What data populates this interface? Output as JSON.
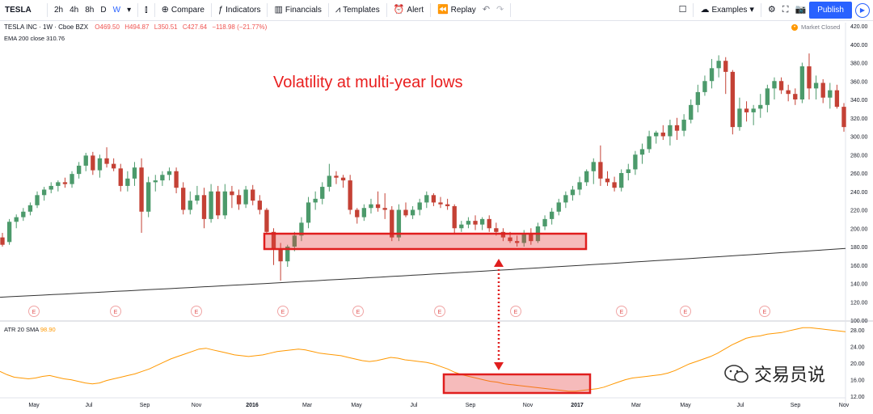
{
  "toolbar": {
    "symbol": "TESLA",
    "timeframes": [
      "2h",
      "4h",
      "8h",
      "D",
      "W"
    ],
    "active_timeframe": "W",
    "compare": "Compare",
    "indicators": "Indicators",
    "financials": "Financials",
    "templates": "Templates",
    "alert": "Alert",
    "replay": "Replay",
    "examples": "Examples",
    "publish": "Publish"
  },
  "legend": {
    "title": "TESLA INC · 1W · Cboe BZX",
    "open": "O469.50",
    "high": "H494.87",
    "low": "L350.51",
    "close": "C427.64",
    "change": "−118.98 (−21.77%)",
    "ema": "EMA 200 close",
    "ema_value": "310.76"
  },
  "market_status": "Market Closed",
  "atr": {
    "label": "ATR 20 SMA",
    "value": "98.90"
  },
  "annotation": "Volatility at multi-year lows",
  "watermark": "交易员说",
  "y_axis_price": [
    "420.00",
    "400.00",
    "380.00",
    "360.00",
    "340.00",
    "320.00",
    "300.00",
    "280.00",
    "260.00",
    "240.00",
    "220.00",
    "200.00",
    "180.00",
    "160.00",
    "140.00",
    "120.00",
    "100.00"
  ],
  "y_axis_atr": [
    "28.00",
    "24.00",
    "20.00",
    "16.00",
    "12.00"
  ],
  "x_axis": [
    "May",
    "Jul",
    "Sep",
    "Nov",
    "2016",
    "Mar",
    "May",
    "Jul",
    "Sep",
    "Nov",
    "2017",
    "Mar",
    "May",
    "Jul",
    "Sep",
    "Nov"
  ],
  "earnings_marker": "E",
  "colors": {
    "up": "#4c9a6b",
    "down": "#c44135",
    "ema": "#333333",
    "atr": "#ff9800",
    "highlight": "#e01e1e",
    "accent": "#2962ff"
  },
  "chart_data": [
    {
      "type": "candlestick",
      "ylim": [
        100,
        420
      ],
      "candles": [
        [
          190,
          195,
          180,
          182
        ],
        [
          185,
          210,
          182,
          207
        ],
        [
          207,
          215,
          200,
          212
        ],
        [
          212,
          222,
          208,
          218
        ],
        [
          218,
          228,
          214,
          225
        ],
        [
          225,
          240,
          222,
          236
        ],
        [
          236,
          245,
          230,
          242
        ],
        [
          242,
          250,
          238,
          246
        ],
        [
          246,
          252,
          240,
          250
        ],
        [
          250,
          255,
          244,
          248
        ],
        [
          248,
          262,
          244,
          259
        ],
        [
          259,
          272,
          254,
          268
        ],
        [
          268,
          282,
          262,
          279
        ],
        [
          279,
          283,
          258,
          263
        ],
        [
          263,
          280,
          255,
          276
        ],
        [
          276,
          288,
          266,
          270
        ],
        [
          270,
          276,
          262,
          265
        ],
        [
          265,
          270,
          240,
          246
        ],
        [
          246,
          262,
          240,
          254
        ],
        [
          254,
          272,
          246,
          266
        ],
        [
          266,
          276,
          195,
          218
        ],
        [
          218,
          256,
          212,
          250
        ],
        [
          250,
          258,
          240,
          252
        ],
        [
          252,
          262,
          246,
          258
        ],
        [
          258,
          266,
          252,
          262
        ],
        [
          262,
          266,
          238,
          244
        ],
        [
          244,
          250,
          215,
          220
        ],
        [
          220,
          240,
          215,
          230
        ],
        [
          230,
          246,
          226,
          236
        ],
        [
          236,
          244,
          200,
          210
        ],
        [
          210,
          248,
          206,
          240
        ],
        [
          240,
          246,
          210,
          214
        ],
        [
          214,
          248,
          210,
          240
        ],
        [
          240,
          246,
          222,
          236
        ],
        [
          236,
          242,
          220,
          226
        ],
        [
          226,
          246,
          222,
          242
        ],
        [
          242,
          247,
          225,
          230
        ],
        [
          230,
          236,
          215,
          220
        ],
        [
          220,
          222,
          194,
          196
        ],
        [
          196,
          200,
          160,
          178
        ],
        [
          178,
          184,
          143,
          164
        ],
        [
          164,
          182,
          158,
          180
        ],
        [
          180,
          196,
          175,
          192
        ],
        [
          192,
          212,
          186,
          206
        ],
        [
          206,
          234,
          200,
          228
        ],
        [
          228,
          240,
          220,
          232
        ],
        [
          232,
          250,
          226,
          245
        ],
        [
          245,
          270,
          240,
          257
        ],
        [
          257,
          262,
          248,
          255
        ],
        [
          255,
          258,
          244,
          252
        ],
        [
          252,
          258,
          215,
          220
        ],
        [
          220,
          222,
          205,
          212
        ],
        [
          212,
          226,
          208,
          222
        ],
        [
          222,
          232,
          216,
          226
        ],
        [
          226,
          240,
          218,
          222
        ],
        [
          222,
          238,
          210,
          220
        ],
        [
          220,
          224,
          186,
          190
        ],
        [
          190,
          226,
          186,
          220
        ],
        [
          220,
          228,
          212,
          214
        ],
        [
          214,
          224,
          210,
          220
        ],
        [
          220,
          232,
          214,
          228
        ],
        [
          228,
          240,
          222,
          236
        ],
        [
          236,
          238,
          224,
          228
        ],
        [
          228,
          234,
          222,
          226
        ],
        [
          226,
          232,
          220,
          224
        ],
        [
          224,
          226,
          194,
          200
        ],
        [
          200,
          208,
          196,
          204
        ],
        [
          204,
          212,
          200,
          208
        ],
        [
          208,
          214,
          198,
          204
        ],
        [
          204,
          212,
          198,
          210
        ],
        [
          210,
          214,
          196,
          200
        ],
        [
          200,
          206,
          192,
          196
        ],
        [
          196,
          200,
          186,
          190
        ],
        [
          190,
          196,
          184,
          186
        ],
        [
          186,
          192,
          180,
          184
        ],
        [
          184,
          198,
          180,
          194
        ],
        [
          194,
          200,
          182,
          186
        ],
        [
          186,
          206,
          184,
          202
        ],
        [
          202,
          214,
          198,
          210
        ],
        [
          210,
          222,
          204,
          218
        ],
        [
          218,
          232,
          214,
          228
        ],
        [
          228,
          240,
          222,
          236
        ],
        [
          236,
          246,
          230,
          242
        ],
        [
          242,
          256,
          236,
          250
        ],
        [
          250,
          264,
          246,
          262
        ],
        [
          262,
          276,
          248,
          272
        ],
        [
          272,
          290,
          246,
          254
        ],
        [
          254,
          262,
          246,
          250
        ],
        [
          250,
          256,
          240,
          244
        ],
        [
          244,
          264,
          240,
          260
        ],
        [
          260,
          270,
          252,
          264
        ],
        [
          264,
          284,
          258,
          280
        ],
        [
          280,
          292,
          270,
          286
        ],
        [
          286,
          306,
          282,
          300
        ],
        [
          300,
          306,
          292,
          304
        ],
        [
          304,
          312,
          296,
          300
        ],
        [
          300,
          318,
          290,
          312
        ],
        [
          312,
          320,
          296,
          306
        ],
        [
          306,
          324,
          300,
          318
        ],
        [
          318,
          340,
          314,
          334
        ],
        [
          334,
          356,
          326,
          348
        ],
        [
          348,
          366,
          344,
          360
        ],
        [
          360,
          384,
          352,
          374
        ],
        [
          374,
          388,
          364,
          382
        ],
        [
          382,
          386,
          346,
          370
        ],
        [
          370,
          372,
          302,
          310
        ],
        [
          310,
          342,
          306,
          330
        ],
        [
          330,
          338,
          316,
          326
        ],
        [
          326,
          334,
          312,
          330
        ],
        [
          330,
          346,
          320,
          334
        ],
        [
          334,
          356,
          326,
          352
        ],
        [
          352,
          364,
          340,
          360
        ],
        [
          360,
          364,
          346,
          350
        ],
        [
          350,
          356,
          338,
          346
        ],
        [
          346,
          352,
          334,
          340
        ],
        [
          340,
          380,
          336,
          376
        ],
        [
          376,
          390,
          340,
          352
        ],
        [
          352,
          366,
          340,
          358
        ],
        [
          358,
          362,
          336,
          342
        ],
        [
          342,
          358,
          330,
          350
        ],
        [
          350,
          356,
          330,
          332
        ],
        [
          332,
          336,
          305,
          310
        ]
      ],
      "ema200": [
        125,
        178
      ],
      "y_axis_range_shown": [
        100,
        420
      ]
    },
    {
      "type": "line",
      "name": "ATR 20 SMA",
      "ylim": [
        12,
        30
      ],
      "values": [
        18,
        17.2,
        16.6,
        16.4,
        16.2,
        16.4,
        16.8,
        17,
        16.6,
        16.2,
        16,
        15.6,
        15.2,
        15,
        15.2,
        15.8,
        16.2,
        16.6,
        17,
        17.4,
        18,
        18.6,
        19.4,
        20.2,
        21,
        21.6,
        22.2,
        22.8,
        23.4,
        23.6,
        23.2,
        22.8,
        22.4,
        22,
        21.8,
        21.6,
        21.8,
        22,
        22.4,
        22.8,
        23,
        23.2,
        23.4,
        23.2,
        22.8,
        22.4,
        22.2,
        22,
        21.8,
        21.4,
        21,
        20.6,
        20.4,
        20.6,
        21,
        21.4,
        21.2,
        20.8,
        20.6,
        20.4,
        20.2,
        19.8,
        19.2,
        18.6,
        17.8,
        17.2,
        16.8,
        16.4,
        16,
        15.6,
        15.4,
        15,
        14.8,
        14.6,
        14.4,
        14.2,
        14,
        13.8,
        13.6,
        13.4,
        13.2,
        13.2,
        13.4,
        13.6,
        13.8,
        14.2,
        14.8,
        15.4,
        16,
        16.4,
        16.6,
        16.8,
        17,
        17.2,
        17.6,
        18.2,
        19,
        19.8,
        20.4,
        21,
        21.6,
        22.4,
        23.4,
        24.4,
        25.2,
        26,
        26.4,
        26.6,
        27,
        27.2,
        27.4,
        27.8,
        28.2,
        28.6,
        28.6,
        28.4,
        28.2,
        28,
        27.8,
        27.6
      ]
    }
  ]
}
